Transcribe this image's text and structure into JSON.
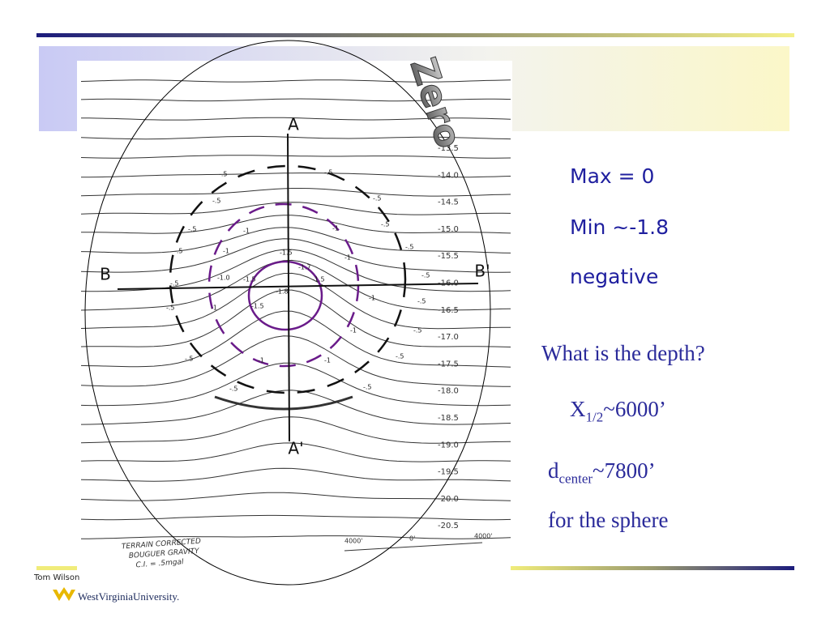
{
  "header": {
    "badge": "Zero"
  },
  "figure": {
    "labels": {
      "a": "A",
      "a_prime": "A'",
      "b": "B",
      "b_prime": "B'"
    },
    "contours": [
      "-13.5",
      "-14.0",
      "-14.5",
      "-15.0",
      "-15.5",
      "-16.0",
      "-16.5",
      "-17.0",
      "-17.5",
      "-18.0",
      "-18.5",
      "-19.0",
      "-19.5",
      "-20.0",
      "-20.5"
    ],
    "readings": [
      "-.5",
      "-.5",
      "-.5",
      "-.5",
      "-.5",
      "-.5",
      "-1",
      "-1",
      "-.5",
      "-.5",
      "-1",
      "-1.5",
      "-1",
      "-.5",
      "-.5",
      "-1.0",
      "-1.5",
      "-1.7",
      "-1.5",
      "-1.8",
      "-1.5",
      "-1",
      "-1",
      "-.5",
      "-.5",
      "-1",
      "-.5",
      "-.5",
      "-1",
      "-1",
      "-.5",
      "-.5",
      "-.5"
    ],
    "legend": [
      "TERRAIN CORRECTED",
      "BOUGUER GRAVITY",
      "C.I. = .5mgal"
    ],
    "scale": [
      "4000'",
      "0'",
      "4000'"
    ]
  },
  "notes": {
    "max": "Max = 0",
    "min": "Min ~-1.8",
    "sign": "negative",
    "question": "What is the depth?",
    "half_width": {
      "symbol": "X",
      "subscript": "1/2",
      "value": "~6000’"
    },
    "depth": {
      "symbol": "d",
      "subscript": "center",
      "value": "~7800’"
    },
    "target": "for the sphere"
  },
  "footer": {
    "author": "Tom Wilson",
    "logo": "WestVirginiaUniversity."
  }
}
